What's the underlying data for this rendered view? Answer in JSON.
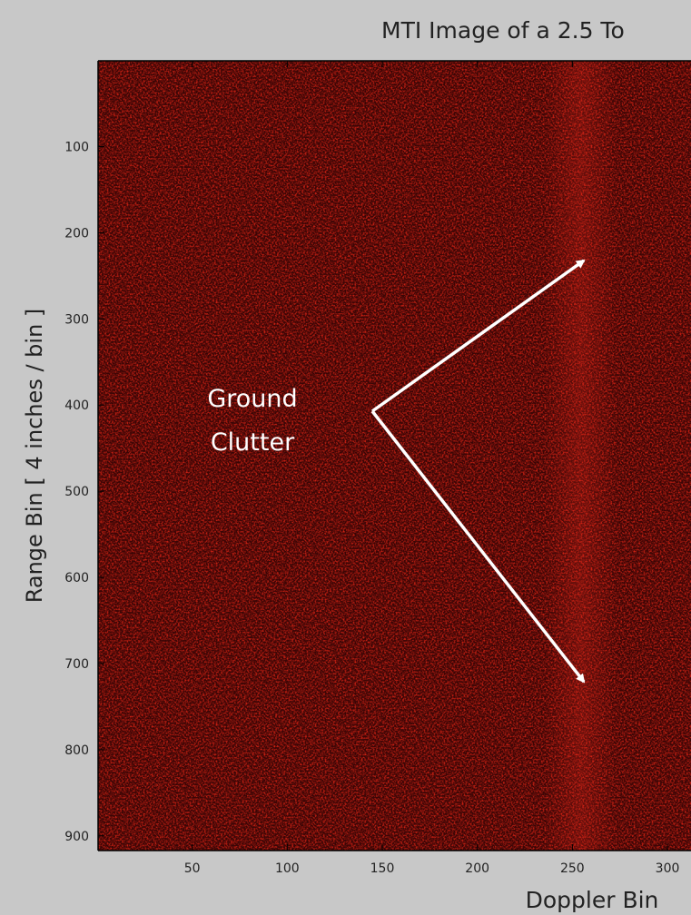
{
  "chart_data": {
    "type": "image",
    "title": "MTI Image of a 2.5 To",
    "xlabel": "Doppler Bin",
    "ylabel": "Range Bin [ 4 inches / bin ]",
    "annotation": [
      "Ground",
      "Clutter"
    ],
    "xlim": [
      0.5,
      312.4
    ],
    "ylim": [
      0.5,
      917
    ],
    "yreverse": true,
    "xticks": [
      50,
      100,
      150,
      200,
      250,
      300
    ],
    "yticks": [
      100,
      200,
      300,
      400,
      500,
      600,
      700,
      800,
      900
    ],
    "color": "#b01010"
  }
}
